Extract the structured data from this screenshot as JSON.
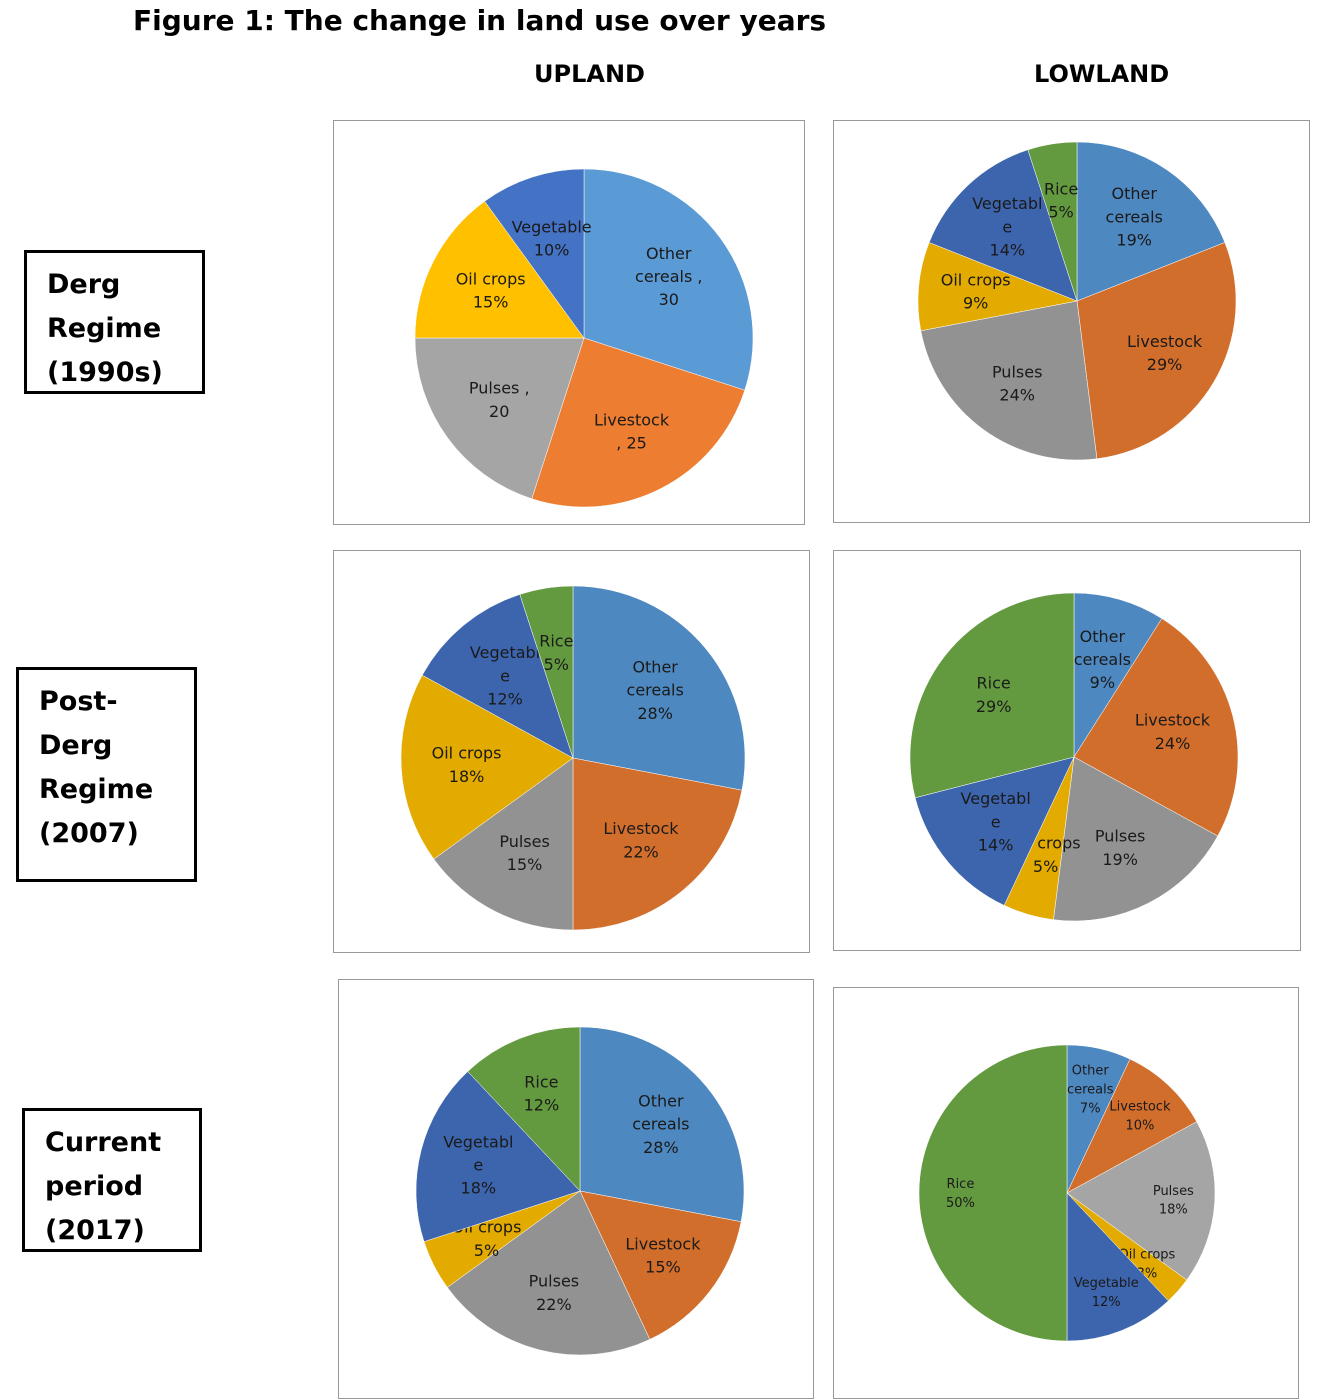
{
  "figure_title": "Figure 1:  The change in land use over years",
  "columns": [
    "UPLAND",
    "LOWLAND"
  ],
  "rows": [
    {
      "lines": [
        "Derg",
        "Regime",
        "(1990s)"
      ]
    },
    {
      "lines": [
        "Post-",
        "Derg",
        "Regime",
        "(2007)"
      ]
    },
    {
      "lines": [
        "Current",
        "period",
        "(2017)"
      ]
    }
  ],
  "colors": {
    "Other cereals": "#5B9BD5",
    "Livestock": "#ED7D31",
    "Pulses": "#A5A5A5",
    "Oil crops": "#FFC000",
    "Vegetable": "#4472C4",
    "Rice": "#70AD47"
  },
  "chart_data": [
    {
      "type": "pie",
      "region": "UPLAND",
      "period": "Derg Regime (1990s)",
      "slices": [
        {
          "name": "Other cereals",
          "value": 30,
          "label": [
            "Other",
            "cereals ,",
            "30"
          ],
          "color": "#5B9BD5"
        },
        {
          "name": "Livestock",
          "value": 25,
          "label": [
            "Livestock",
            ", 25"
          ],
          "color": "#ED7D31"
        },
        {
          "name": "Pulses",
          "value": 20,
          "label": [
            "Pulses ,",
            "20"
          ],
          "color": "#A5A5A5"
        },
        {
          "name": "Oil crops",
          "value": 15,
          "label": [
            "Oil crops",
            "15%"
          ],
          "color": "#FFC000"
        },
        {
          "name": "Vegetable",
          "value": 10,
          "label": [
            "Vegetable",
            "10%"
          ],
          "color": "#4472C4"
        }
      ]
    },
    {
      "type": "pie",
      "region": "LOWLAND",
      "period": "Derg Regime (1990s)",
      "slices": [
        {
          "name": "Other cereals",
          "value": 19,
          "label": [
            "Other",
            "cereals",
            "19%"
          ],
          "color": "#4E88C0"
        },
        {
          "name": "Livestock",
          "value": 29,
          "label": [
            "Livestock",
            "29%"
          ],
          "color": "#D26E2B"
        },
        {
          "name": "Pulses",
          "value": 24,
          "label": [
            "Pulses",
            "24%"
          ],
          "color": "#929292"
        },
        {
          "name": "Oil crops",
          "value": 9,
          "label": [
            "Oil crops",
            "9%"
          ],
          "color": "#E3AA00"
        },
        {
          "name": "Vegetable",
          "value": 14,
          "label": [
            "Vegetabl",
            "e",
            "14%"
          ],
          "color": "#3D65AE"
        },
        {
          "name": "Rice",
          "value": 5,
          "label": [
            "Rice",
            "5%"
          ],
          "color": "#649A3F"
        }
      ]
    },
    {
      "type": "pie",
      "region": "UPLAND",
      "period": "Post-Derg Regime (2007)",
      "slices": [
        {
          "name": "Other cereals",
          "value": 28,
          "label": [
            "Other",
            "cereals",
            "28%"
          ],
          "color": "#4E88C0"
        },
        {
          "name": "Livestock",
          "value": 22,
          "label": [
            "Livestock",
            "22%"
          ],
          "color": "#D26E2B"
        },
        {
          "name": "Pulses",
          "value": 15,
          "label": [
            "Pulses",
            "15%"
          ],
          "color": "#929292"
        },
        {
          "name": "Oil crops",
          "value": 18,
          "label": [
            "Oil crops",
            "18%"
          ],
          "color": "#E3AA00"
        },
        {
          "name": "Vegetable",
          "value": 12,
          "label": [
            "Vegetabl",
            "e",
            "12%"
          ],
          "color": "#3D65AE"
        },
        {
          "name": "Rice",
          "value": 5,
          "label": [
            "Rice",
            "5%"
          ],
          "color": "#649A3F"
        }
      ]
    },
    {
      "type": "pie",
      "region": "LOWLAND",
      "period": "Post-Derg Regime (2007)",
      "slices": [
        {
          "name": "Other cereals",
          "value": 9,
          "label": [
            "Other",
            "cereals",
            "9%"
          ],
          "color": "#4E88C0"
        },
        {
          "name": "Livestock",
          "value": 24,
          "label": [
            "Livestock",
            "24%"
          ],
          "color": "#D26E2B"
        },
        {
          "name": "Pulses",
          "value": 19,
          "label": [
            "Pulses",
            "19%"
          ],
          "color": "#929292"
        },
        {
          "name": "Oil crops",
          "value": 5,
          "label": [
            "Oil crops",
            "5%"
          ],
          "color": "#E3AA00"
        },
        {
          "name": "Vegetable",
          "value": 14,
          "label": [
            "Vegetabl",
            "e",
            "14%"
          ],
          "color": "#3D65AE"
        },
        {
          "name": "Rice",
          "value": 29,
          "label": [
            "Rice",
            "29%"
          ],
          "color": "#649A3F"
        }
      ]
    },
    {
      "type": "pie",
      "region": "UPLAND",
      "period": "Current period (2017)",
      "slices": [
        {
          "name": "Other cereals",
          "value": 28,
          "label": [
            "Other",
            "cereals",
            "28%"
          ],
          "color": "#4E88C0"
        },
        {
          "name": "Livestock",
          "value": 15,
          "label": [
            "Livestock",
            "15%"
          ],
          "color": "#D26E2B"
        },
        {
          "name": "Pulses",
          "value": 22,
          "label": [
            "Pulses",
            "22%"
          ],
          "color": "#929292"
        },
        {
          "name": "Oil crops",
          "value": 5,
          "label": [
            "Oil crops",
            "5%"
          ],
          "color": "#E3AA00"
        },
        {
          "name": "Vegetable",
          "value": 18,
          "label": [
            "Vegetabl",
            "e",
            "18%"
          ],
          "color": "#3D65AE"
        },
        {
          "name": "Rice",
          "value": 12,
          "label": [
            "Rice",
            "12%"
          ],
          "color": "#649A3F"
        }
      ]
    },
    {
      "type": "pie",
      "region": "LOWLAND",
      "period": "Current period (2017)",
      "slices": [
        {
          "name": "Other cereals",
          "value": 7,
          "label": [
            "Other",
            "cereals",
            "7%"
          ],
          "color": "#4E88C0"
        },
        {
          "name": "Livestock",
          "value": 10,
          "label": [
            "Livestock",
            "10%"
          ],
          "color": "#D26E2B"
        },
        {
          "name": "Pulses",
          "value": 18,
          "label": [
            "Pulses",
            "18%"
          ],
          "color": "#A5A5A5"
        },
        {
          "name": "Oil crops",
          "value": 3,
          "label": [
            "Oil crops",
            "3%"
          ],
          "color": "#E3AA00"
        },
        {
          "name": "Vegetable",
          "value": 12,
          "label": [
            "Vegetable",
            "12%"
          ],
          "color": "#3D65AE"
        },
        {
          "name": "Rice",
          "value": 50,
          "label": [
            "Rice",
            "50%"
          ],
          "color": "#649A3F"
        }
      ]
    }
  ]
}
